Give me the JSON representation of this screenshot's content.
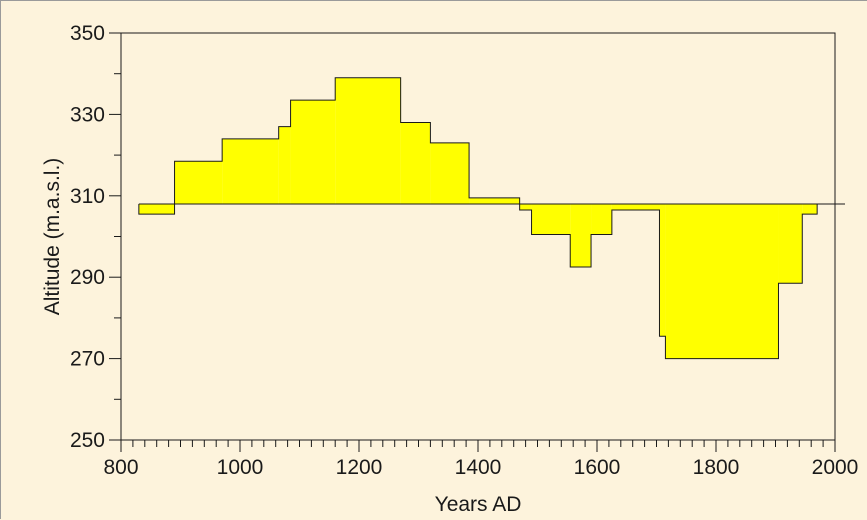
{
  "chart_data": {
    "type": "area",
    "title": "",
    "xlabel": "Years AD",
    "ylabel": "Altitude (m.a.s.l.)",
    "xlim": [
      800,
      2000
    ],
    "ylim": [
      250,
      350
    ],
    "baseline": 308,
    "x_ticks": [
      800,
      1000,
      1200,
      1400,
      1600,
      1800,
      2000
    ],
    "y_ticks": [
      250,
      270,
      290,
      310,
      330,
      350
    ],
    "x_minor_step": 20,
    "y_minor_step": 10,
    "grid": false,
    "legend": "none",
    "fill_color": "#ffff00",
    "line_color": "#1a1a1a",
    "series": [
      {
        "steps": [
          {
            "x0": 830,
            "x1": 890,
            "y": 305.5
          },
          {
            "x0": 890,
            "x1": 970,
            "y": 318.5
          },
          {
            "x0": 970,
            "x1": 1065,
            "y": 324
          },
          {
            "x0": 1065,
            "x1": 1085,
            "y": 327
          },
          {
            "x0": 1085,
            "x1": 1160,
            "y": 333.5
          },
          {
            "x0": 1160,
            "x1": 1270,
            "y": 339
          },
          {
            "x0": 1270,
            "x1": 1320,
            "y": 328
          },
          {
            "x0": 1320,
            "x1": 1385,
            "y": 323
          },
          {
            "x0": 1385,
            "x1": 1470,
            "y": 309.5
          },
          {
            "x0": 1470,
            "x1": 1490,
            "y": 306.5
          },
          {
            "x0": 1490,
            "x1": 1555,
            "y": 300.5
          },
          {
            "x0": 1555,
            "x1": 1590,
            "y": 292.5
          },
          {
            "x0": 1590,
            "x1": 1625,
            "y": 300.5
          },
          {
            "x0": 1625,
            "x1": 1705,
            "y": 306.5
          },
          {
            "x0": 1705,
            "x1": 1715,
            "y": 275.5
          },
          {
            "x0": 1715,
            "x1": 1905,
            "y": 270
          },
          {
            "x0": 1905,
            "x1": 1945,
            "y": 288.5
          },
          {
            "x0": 1945,
            "x1": 1970,
            "y": 305.5
          }
        ]
      }
    ]
  }
}
